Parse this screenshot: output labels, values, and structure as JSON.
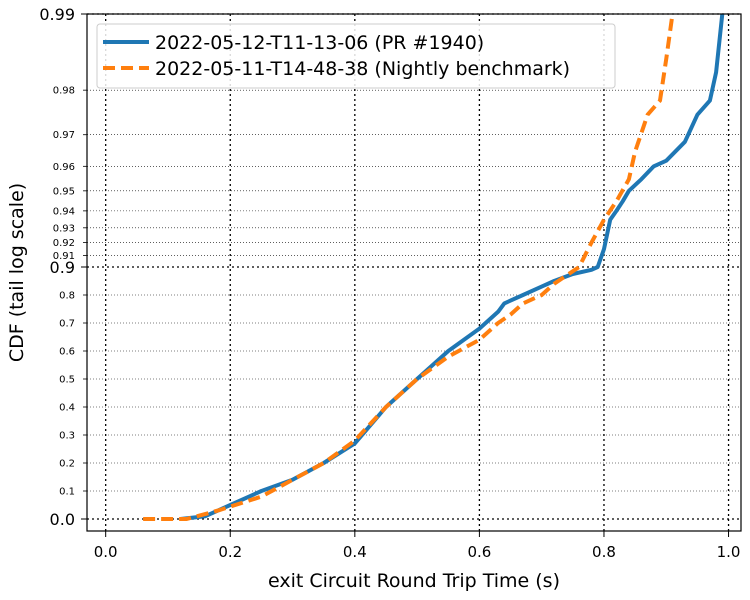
{
  "chart_data": {
    "type": "line",
    "xlabel": "exit Circuit Round Trip Time (s)",
    "ylabel": "CDF (tail log scale)",
    "xlim": [
      -0.03,
      1.02
    ],
    "x_ticks": [
      {
        "value": 0.0,
        "label": "0.0"
      },
      {
        "value": 0.2,
        "label": "0.2"
      },
      {
        "value": 0.4,
        "label": "0.4"
      },
      {
        "value": 0.6,
        "label": "0.6"
      },
      {
        "value": 0.8,
        "label": "0.8"
      },
      {
        "value": 1.0,
        "label": "1.0"
      }
    ],
    "y_scale": "tail-log (linear 0–0.9, log tail 0.9–0.99)",
    "y_ticks_major": [
      {
        "value": 0.0,
        "label": "0.0"
      },
      {
        "value": 0.9,
        "label": "0.9"
      },
      {
        "value": 0.99,
        "label": "0.99"
      }
    ],
    "y_ticks_minor": [
      {
        "value": 0.1,
        "label": "0.1"
      },
      {
        "value": 0.2,
        "label": "0.2"
      },
      {
        "value": 0.3,
        "label": "0.3"
      },
      {
        "value": 0.4,
        "label": "0.4"
      },
      {
        "value": 0.5,
        "label": "0.5"
      },
      {
        "value": 0.6,
        "label": "0.6"
      },
      {
        "value": 0.7,
        "label": "0.7"
      },
      {
        "value": 0.8,
        "label": "0.8"
      },
      {
        "value": 0.91,
        "label": "0.91"
      },
      {
        "value": 0.92,
        "label": "0.92"
      },
      {
        "value": 0.93,
        "label": "0.93"
      },
      {
        "value": 0.94,
        "label": "0.94"
      },
      {
        "value": 0.95,
        "label": "0.95"
      },
      {
        "value": 0.96,
        "label": "0.96"
      },
      {
        "value": 0.97,
        "label": "0.97"
      },
      {
        "value": 0.98,
        "label": "0.98"
      }
    ],
    "grid": true,
    "legend_position": "top-left",
    "series": [
      {
        "name": "2022-05-12-T11-13-06 (PR #1940)",
        "color": "#1f77b4",
        "style": "solid",
        "points": [
          [
            0.12,
            0.0
          ],
          [
            0.16,
            0.01
          ],
          [
            0.2,
            0.05
          ],
          [
            0.25,
            0.1
          ],
          [
            0.3,
            0.14
          ],
          [
            0.35,
            0.2
          ],
          [
            0.4,
            0.27
          ],
          [
            0.45,
            0.4
          ],
          [
            0.5,
            0.5
          ],
          [
            0.55,
            0.6
          ],
          [
            0.6,
            0.68
          ],
          [
            0.63,
            0.74
          ],
          [
            0.64,
            0.77
          ],
          [
            0.67,
            0.8
          ],
          [
            0.7,
            0.83
          ],
          [
            0.72,
            0.85
          ],
          [
            0.75,
            0.875
          ],
          [
            0.78,
            0.89
          ],
          [
            0.79,
            0.9
          ],
          [
            0.8,
            0.915
          ],
          [
            0.81,
            0.935
          ],
          [
            0.82,
            0.94
          ],
          [
            0.83,
            0.945
          ],
          [
            0.84,
            0.95
          ],
          [
            0.86,
            0.955
          ],
          [
            0.88,
            0.96
          ],
          [
            0.9,
            0.962
          ],
          [
            0.93,
            0.968
          ],
          [
            0.95,
            0.975
          ],
          [
            0.97,
            0.978
          ],
          [
            0.98,
            0.983
          ],
          [
            0.99,
            0.99
          ]
        ]
      },
      {
        "name": "2022-05-11-T14-48-38 (Nightly benchmark)",
        "color": "#ff7f0e",
        "style": "dashed",
        "points": [
          [
            0.06,
            0.0
          ],
          [
            0.13,
            0.0
          ],
          [
            0.18,
            0.03
          ],
          [
            0.25,
            0.08
          ],
          [
            0.3,
            0.14
          ],
          [
            0.35,
            0.2
          ],
          [
            0.4,
            0.28
          ],
          [
            0.45,
            0.4
          ],
          [
            0.5,
            0.5
          ],
          [
            0.55,
            0.58
          ],
          [
            0.6,
            0.64
          ],
          [
            0.63,
            0.7
          ],
          [
            0.65,
            0.73
          ],
          [
            0.67,
            0.77
          ],
          [
            0.7,
            0.8
          ],
          [
            0.72,
            0.84
          ],
          [
            0.74,
            0.87
          ],
          [
            0.76,
            0.9
          ],
          [
            0.78,
            0.92
          ],
          [
            0.8,
            0.935
          ],
          [
            0.82,
            0.945
          ],
          [
            0.84,
            0.955
          ],
          [
            0.85,
            0.965
          ],
          [
            0.87,
            0.975
          ],
          [
            0.89,
            0.978
          ],
          [
            0.9,
            0.985
          ],
          [
            0.91,
            0.99
          ]
        ]
      }
    ]
  }
}
